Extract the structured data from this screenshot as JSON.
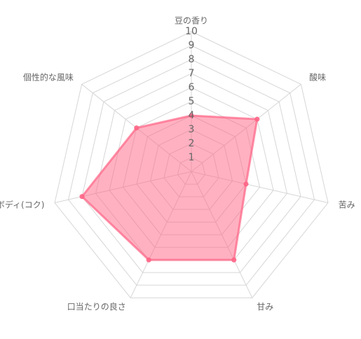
{
  "chart_data": {
    "type": "radar",
    "categories": [
      "豆の香り",
      "酸味",
      "苦み",
      "甘み",
      "口当たりの良さ",
      "ボディ(コク)",
      "個性的な風味"
    ],
    "values": [
      4,
      6,
      4,
      7,
      7,
      8,
      5
    ],
    "color": "#ff6384",
    "rlim": [
      0,
      10
    ],
    "rticks": [
      1,
      2,
      3,
      4,
      5,
      6,
      7,
      8,
      9,
      10
    ],
    "grid": true
  }
}
